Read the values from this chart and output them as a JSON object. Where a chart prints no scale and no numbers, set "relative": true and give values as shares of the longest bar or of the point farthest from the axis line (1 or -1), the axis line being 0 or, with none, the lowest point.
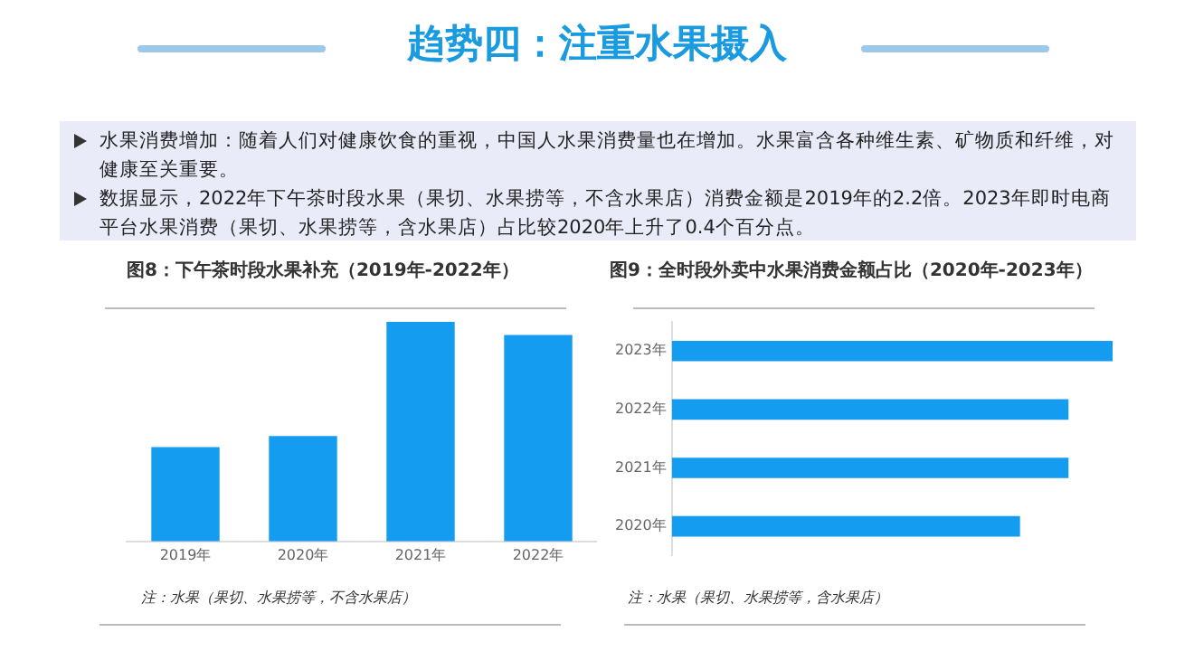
{
  "chart_data": [
    {
      "type": "other",
      "title": "趋势四：注重水果摄入",
      "annotations": [
        "水果消费增加：随着人们对健康饮食的重视，中国人水果消费量也在增加。水果富含各种维生素、矿物质和纤维，对健康至关重要。",
        "数据显示，2022年下午茶时段水果（果切、水果捞等，不含水果店）消费金额是2019年的2.2倍。2023年即时电商平台水果消费（果切、水果捞等，含水果店）占比较2020年上升了0.4个百分点。"
      ]
    },
    {
      "type": "bar",
      "title": "图8：下午茶时段水果补充（2019年-2022年）",
      "categories": [
        "2019年",
        "2020年",
        "2021年",
        "2022年"
      ],
      "values": [
        0.43,
        0.48,
        1,
        0.94
      ],
      "color": "#149cf0",
      "relative": true,
      "annotations": [
        "注：水果（果切、水果捞等，不含水果店）"
      ]
    },
    {
      "type": "bar",
      "orientation": "horizontal",
      "title": "图9：全时段外卖中水果消费金额占比（2020年-2023年）",
      "categories": [
        "2023年",
        "2022年",
        "2021年",
        "2020年"
      ],
      "values": [
        1,
        0.9,
        0.9,
        0.79
      ],
      "color": "#149cf0",
      "relative": true,
      "annotations": [
        "注：水果（果切、水果捞等，含水果店）"
      ]
    }
  ]
}
